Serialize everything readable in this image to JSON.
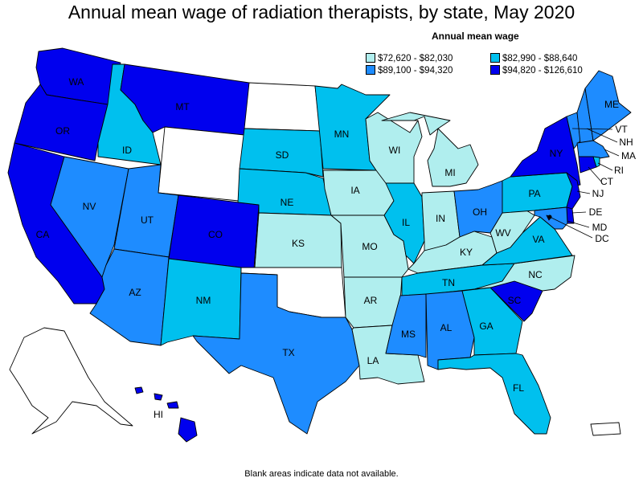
{
  "title": "Annual mean wage of radiation therapists, by state, May 2020",
  "legend": {
    "title": "Annual mean wage",
    "items": [
      {
        "label": "$72,620 - $82,030",
        "color": "#b0eeee"
      },
      {
        "label": "$82,990 - $88,640",
        "color": "#00c0ee"
      },
      {
        "label": "$89,100 - $94,320",
        "color": "#1e8cff"
      },
      {
        "label": "$94,820 - $126,610",
        "color": "#0000ee"
      }
    ]
  },
  "no_data_color": "#ffffff",
  "footnote": "Blank areas indicate data not available.",
  "states": [
    {
      "abbr": "WA",
      "bin": 3
    },
    {
      "abbr": "OR",
      "bin": 3
    },
    {
      "abbr": "CA",
      "bin": 3
    },
    {
      "abbr": "ID",
      "bin": 1
    },
    {
      "abbr": "NV",
      "bin": 2
    },
    {
      "abbr": "MT",
      "bin": 3
    },
    {
      "abbr": "WY",
      "bin": null
    },
    {
      "abbr": "UT",
      "bin": 2
    },
    {
      "abbr": "AZ",
      "bin": 2
    },
    {
      "abbr": "CO",
      "bin": 3
    },
    {
      "abbr": "NM",
      "bin": 1
    },
    {
      "abbr": "ND",
      "bin": null
    },
    {
      "abbr": "SD",
      "bin": 1
    },
    {
      "abbr": "NE",
      "bin": 1
    },
    {
      "abbr": "KS",
      "bin": 0
    },
    {
      "abbr": "OK",
      "bin": null
    },
    {
      "abbr": "TX",
      "bin": 2
    },
    {
      "abbr": "MN",
      "bin": 1
    },
    {
      "abbr": "IA",
      "bin": 0
    },
    {
      "abbr": "MO",
      "bin": 0
    },
    {
      "abbr": "AR",
      "bin": 0
    },
    {
      "abbr": "LA",
      "bin": 0
    },
    {
      "abbr": "WI",
      "bin": 0
    },
    {
      "abbr": "IL",
      "bin": 1
    },
    {
      "abbr": "MI",
      "bin": 0
    },
    {
      "abbr": "IN",
      "bin": 0
    },
    {
      "abbr": "OH",
      "bin": 2
    },
    {
      "abbr": "KY",
      "bin": 0
    },
    {
      "abbr": "TN",
      "bin": 1
    },
    {
      "abbr": "MS",
      "bin": 2
    },
    {
      "abbr": "AL",
      "bin": 2
    },
    {
      "abbr": "GA",
      "bin": 1
    },
    {
      "abbr": "FL",
      "bin": 1
    },
    {
      "abbr": "SC",
      "bin": 3
    },
    {
      "abbr": "NC",
      "bin": 0
    },
    {
      "abbr": "VA",
      "bin": 1
    },
    {
      "abbr": "WV",
      "bin": 0
    },
    {
      "abbr": "PA",
      "bin": 1
    },
    {
      "abbr": "NY",
      "bin": 3
    },
    {
      "abbr": "ME",
      "bin": 2
    },
    {
      "abbr": "VT",
      "bin": 2
    },
    {
      "abbr": "NH",
      "bin": 2
    },
    {
      "abbr": "MA",
      "bin": 2
    },
    {
      "abbr": "RI",
      "bin": 1
    },
    {
      "abbr": "CT",
      "bin": 3
    },
    {
      "abbr": "NJ",
      "bin": 3
    },
    {
      "abbr": "DE",
      "bin": 3
    },
    {
      "abbr": "MD",
      "bin": 2
    },
    {
      "abbr": "DC",
      "bin": 3
    },
    {
      "abbr": "HI",
      "bin": 3
    },
    {
      "abbr": "AK",
      "bin": null
    },
    {
      "abbr": "PR",
      "bin": null
    }
  ]
}
